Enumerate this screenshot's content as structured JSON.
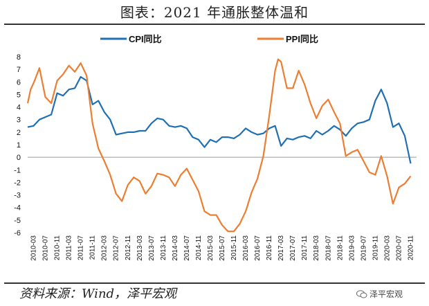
{
  "title": "图表：2021 年通胀整体温和",
  "source": "资料来源：Wind，泽平宏观",
  "watermark": "泽平宏观",
  "colors": {
    "cpi": "#1F6FB2",
    "ppi": "#ED7D31"
  },
  "chart_data": {
    "type": "line",
    "title": "图表：2021 年通胀整体温和",
    "ylim": [
      -6,
      8
    ],
    "yticks": [
      8,
      7,
      6,
      5,
      4,
      3,
      2,
      1,
      0,
      -1,
      -2,
      -3,
      -4,
      -5,
      -6
    ],
    "grid": false,
    "legend_position": "top",
    "x_start": "2010-01",
    "x_end": "2021-01",
    "xticks": [
      "2010-03",
      "2010-07",
      "2010-11",
      "2011-03",
      "2011-07",
      "2011-11",
      "2012-03",
      "2012-07",
      "2012-11",
      "2013-03",
      "2013-07",
      "2013-11",
      "2014-03",
      "2014-07",
      "2014-11",
      "2015-03",
      "2015-07",
      "2015-11",
      "2016-03",
      "2016-07",
      "2016-11",
      "2017-03",
      "2017-07",
      "2017-11",
      "2018-03",
      "2018-07",
      "2018-11",
      "2019-03",
      "2019-07",
      "2019-11",
      "2020-03",
      "2020-07",
      "2020-11"
    ],
    "series": [
      {
        "name": "CPI同比",
        "color": "#1F6FB2",
        "points": [
          [
            "2010-01",
            2.4
          ],
          [
            "2010-03",
            2.5
          ],
          [
            "2010-05",
            3.0
          ],
          [
            "2010-07",
            3.2
          ],
          [
            "2010-09",
            3.4
          ],
          [
            "2010-11",
            5.1
          ],
          [
            "2011-01",
            4.9
          ],
          [
            "2011-03",
            5.4
          ],
          [
            "2011-05",
            5.5
          ],
          [
            "2011-07",
            6.4
          ],
          [
            "2011-09",
            6.1
          ],
          [
            "2011-11",
            4.2
          ],
          [
            "2012-01",
            4.5
          ],
          [
            "2012-03",
            3.6
          ],
          [
            "2012-05",
            3.0
          ],
          [
            "2012-07",
            1.8
          ],
          [
            "2012-09",
            1.9
          ],
          [
            "2012-11",
            2.0
          ],
          [
            "2013-01",
            2.0
          ],
          [
            "2013-03",
            2.1
          ],
          [
            "2013-05",
            2.1
          ],
          [
            "2013-07",
            2.7
          ],
          [
            "2013-09",
            3.1
          ],
          [
            "2013-11",
            3.0
          ],
          [
            "2014-01",
            2.5
          ],
          [
            "2014-03",
            2.4
          ],
          [
            "2014-05",
            2.5
          ],
          [
            "2014-07",
            2.3
          ],
          [
            "2014-09",
            1.6
          ],
          [
            "2014-11",
            1.4
          ],
          [
            "2015-01",
            0.8
          ],
          [
            "2015-03",
            1.4
          ],
          [
            "2015-05",
            1.2
          ],
          [
            "2015-07",
            1.6
          ],
          [
            "2015-09",
            1.6
          ],
          [
            "2015-11",
            1.5
          ],
          [
            "2016-01",
            1.8
          ],
          [
            "2016-03",
            2.3
          ],
          [
            "2016-05",
            2.0
          ],
          [
            "2016-07",
            1.8
          ],
          [
            "2016-09",
            1.9
          ],
          [
            "2016-11",
            2.3
          ],
          [
            "2017-01",
            2.5
          ],
          [
            "2017-03",
            0.9
          ],
          [
            "2017-05",
            1.5
          ],
          [
            "2017-07",
            1.4
          ],
          [
            "2017-09",
            1.6
          ],
          [
            "2017-11",
            1.7
          ],
          [
            "2018-01",
            1.5
          ],
          [
            "2018-03",
            2.1
          ],
          [
            "2018-05",
            1.8
          ],
          [
            "2018-07",
            2.1
          ],
          [
            "2018-09",
            2.5
          ],
          [
            "2018-11",
            2.2
          ],
          [
            "2019-01",
            1.7
          ],
          [
            "2019-03",
            2.3
          ],
          [
            "2019-05",
            2.7
          ],
          [
            "2019-07",
            2.8
          ],
          [
            "2019-09",
            3.0
          ],
          [
            "2019-11",
            4.5
          ],
          [
            "2020-01",
            5.4
          ],
          [
            "2020-03",
            4.3
          ],
          [
            "2020-05",
            2.4
          ],
          [
            "2020-07",
            2.7
          ],
          [
            "2020-09",
            1.7
          ],
          [
            "2020-11",
            -0.5
          ]
        ]
      },
      {
        "name": "PPI同比",
        "color": "#ED7D31",
        "points": [
          [
            "2010-01",
            4.3
          ],
          [
            "2010-02",
            5.4
          ],
          [
            "2010-03",
            5.9
          ],
          [
            "2010-05",
            7.1
          ],
          [
            "2010-07",
            4.8
          ],
          [
            "2010-09",
            4.3
          ],
          [
            "2010-11",
            6.1
          ],
          [
            "2011-01",
            6.6
          ],
          [
            "2011-03",
            7.3
          ],
          [
            "2011-05",
            6.8
          ],
          [
            "2011-07",
            7.5
          ],
          [
            "2011-09",
            6.5
          ],
          [
            "2011-11",
            2.7
          ],
          [
            "2012-01",
            0.7
          ],
          [
            "2012-03",
            -0.3
          ],
          [
            "2012-05",
            -1.4
          ],
          [
            "2012-07",
            -2.9
          ],
          [
            "2012-09",
            -3.5
          ],
          [
            "2012-11",
            -2.2
          ],
          [
            "2013-01",
            -1.6
          ],
          [
            "2013-03",
            -1.9
          ],
          [
            "2013-05",
            -2.9
          ],
          [
            "2013-07",
            -2.3
          ],
          [
            "2013-09",
            -1.3
          ],
          [
            "2013-11",
            -1.4
          ],
          [
            "2014-01",
            -1.6
          ],
          [
            "2014-03",
            -2.3
          ],
          [
            "2014-05",
            -1.4
          ],
          [
            "2014-07",
            -0.9
          ],
          [
            "2014-09",
            -1.8
          ],
          [
            "2014-11",
            -2.7
          ],
          [
            "2015-01",
            -4.3
          ],
          [
            "2015-03",
            -4.6
          ],
          [
            "2015-05",
            -4.6
          ],
          [
            "2015-07",
            -5.4
          ],
          [
            "2015-09",
            -5.9
          ],
          [
            "2015-11",
            -5.9
          ],
          [
            "2016-01",
            -5.3
          ],
          [
            "2016-03",
            -4.3
          ],
          [
            "2016-05",
            -2.8
          ],
          [
            "2016-07",
            -1.7
          ],
          [
            "2016-09",
            0.1
          ],
          [
            "2016-11",
            3.3
          ],
          [
            "2017-01",
            6.9
          ],
          [
            "2017-02",
            7.8
          ],
          [
            "2017-03",
            7.6
          ],
          [
            "2017-05",
            5.5
          ],
          [
            "2017-07",
            5.5
          ],
          [
            "2017-09",
            6.9
          ],
          [
            "2017-11",
            5.8
          ],
          [
            "2018-01",
            4.3
          ],
          [
            "2018-03",
            3.1
          ],
          [
            "2018-05",
            4.1
          ],
          [
            "2018-07",
            4.6
          ],
          [
            "2018-09",
            3.6
          ],
          [
            "2018-11",
            2.7
          ],
          [
            "2019-01",
            0.1
          ],
          [
            "2019-03",
            0.4
          ],
          [
            "2019-05",
            0.6
          ],
          [
            "2019-07",
            -0.3
          ],
          [
            "2019-09",
            -1.2
          ],
          [
            "2019-11",
            -1.4
          ],
          [
            "2020-01",
            0.1
          ],
          [
            "2020-03",
            -1.5
          ],
          [
            "2020-05",
            -3.7
          ],
          [
            "2020-07",
            -2.4
          ],
          [
            "2020-09",
            -2.1
          ],
          [
            "2020-11",
            -1.5
          ]
        ]
      }
    ]
  }
}
